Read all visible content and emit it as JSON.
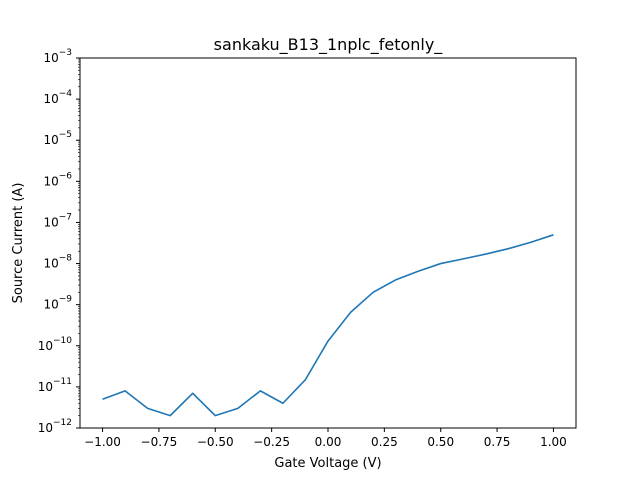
{
  "chart_data": {
    "type": "line",
    "title": "sankaku_B13_1nplc_fetonly_",
    "xlabel": "Gate Voltage (V)",
    "ylabel": "Source Current (A)",
    "xlim": [
      -1.1,
      1.1
    ],
    "ylim": [
      1e-12,
      0.001
    ],
    "yscale": "log",
    "grid": false,
    "x_ticks": [
      -1.0,
      -0.75,
      -0.5,
      -0.25,
      0.0,
      0.25,
      0.5,
      0.75,
      1.0
    ],
    "x_tick_labels": [
      "−1.00",
      "−0.75",
      "−0.50",
      "−0.25",
      "0.00",
      "0.25",
      "0.50",
      "0.75",
      "1.00"
    ],
    "y_tick_exponents": [
      -12,
      -11,
      -10,
      -9,
      -8,
      -7,
      -6,
      -5,
      -4,
      -3
    ],
    "series": [
      {
        "color": "#1f77b4",
        "x": [
          -1.0,
          -0.9,
          -0.8,
          -0.7,
          -0.6,
          -0.5,
          -0.4,
          -0.3,
          -0.2,
          -0.1,
          0.0,
          0.1,
          0.2,
          0.3,
          0.4,
          0.5,
          0.6,
          0.7,
          0.8,
          0.9,
          1.0
        ],
        "y": [
          5e-12,
          8e-12,
          3e-12,
          2e-12,
          7e-12,
          2e-12,
          3e-12,
          8e-12,
          4e-12,
          1.5e-11,
          1.3e-10,
          6.5e-10,
          2e-09,
          4e-09,
          6.5e-09,
          1e-08,
          1.3e-08,
          1.7e-08,
          2.3e-08,
          3.3e-08,
          5e-08
        ]
      }
    ]
  }
}
